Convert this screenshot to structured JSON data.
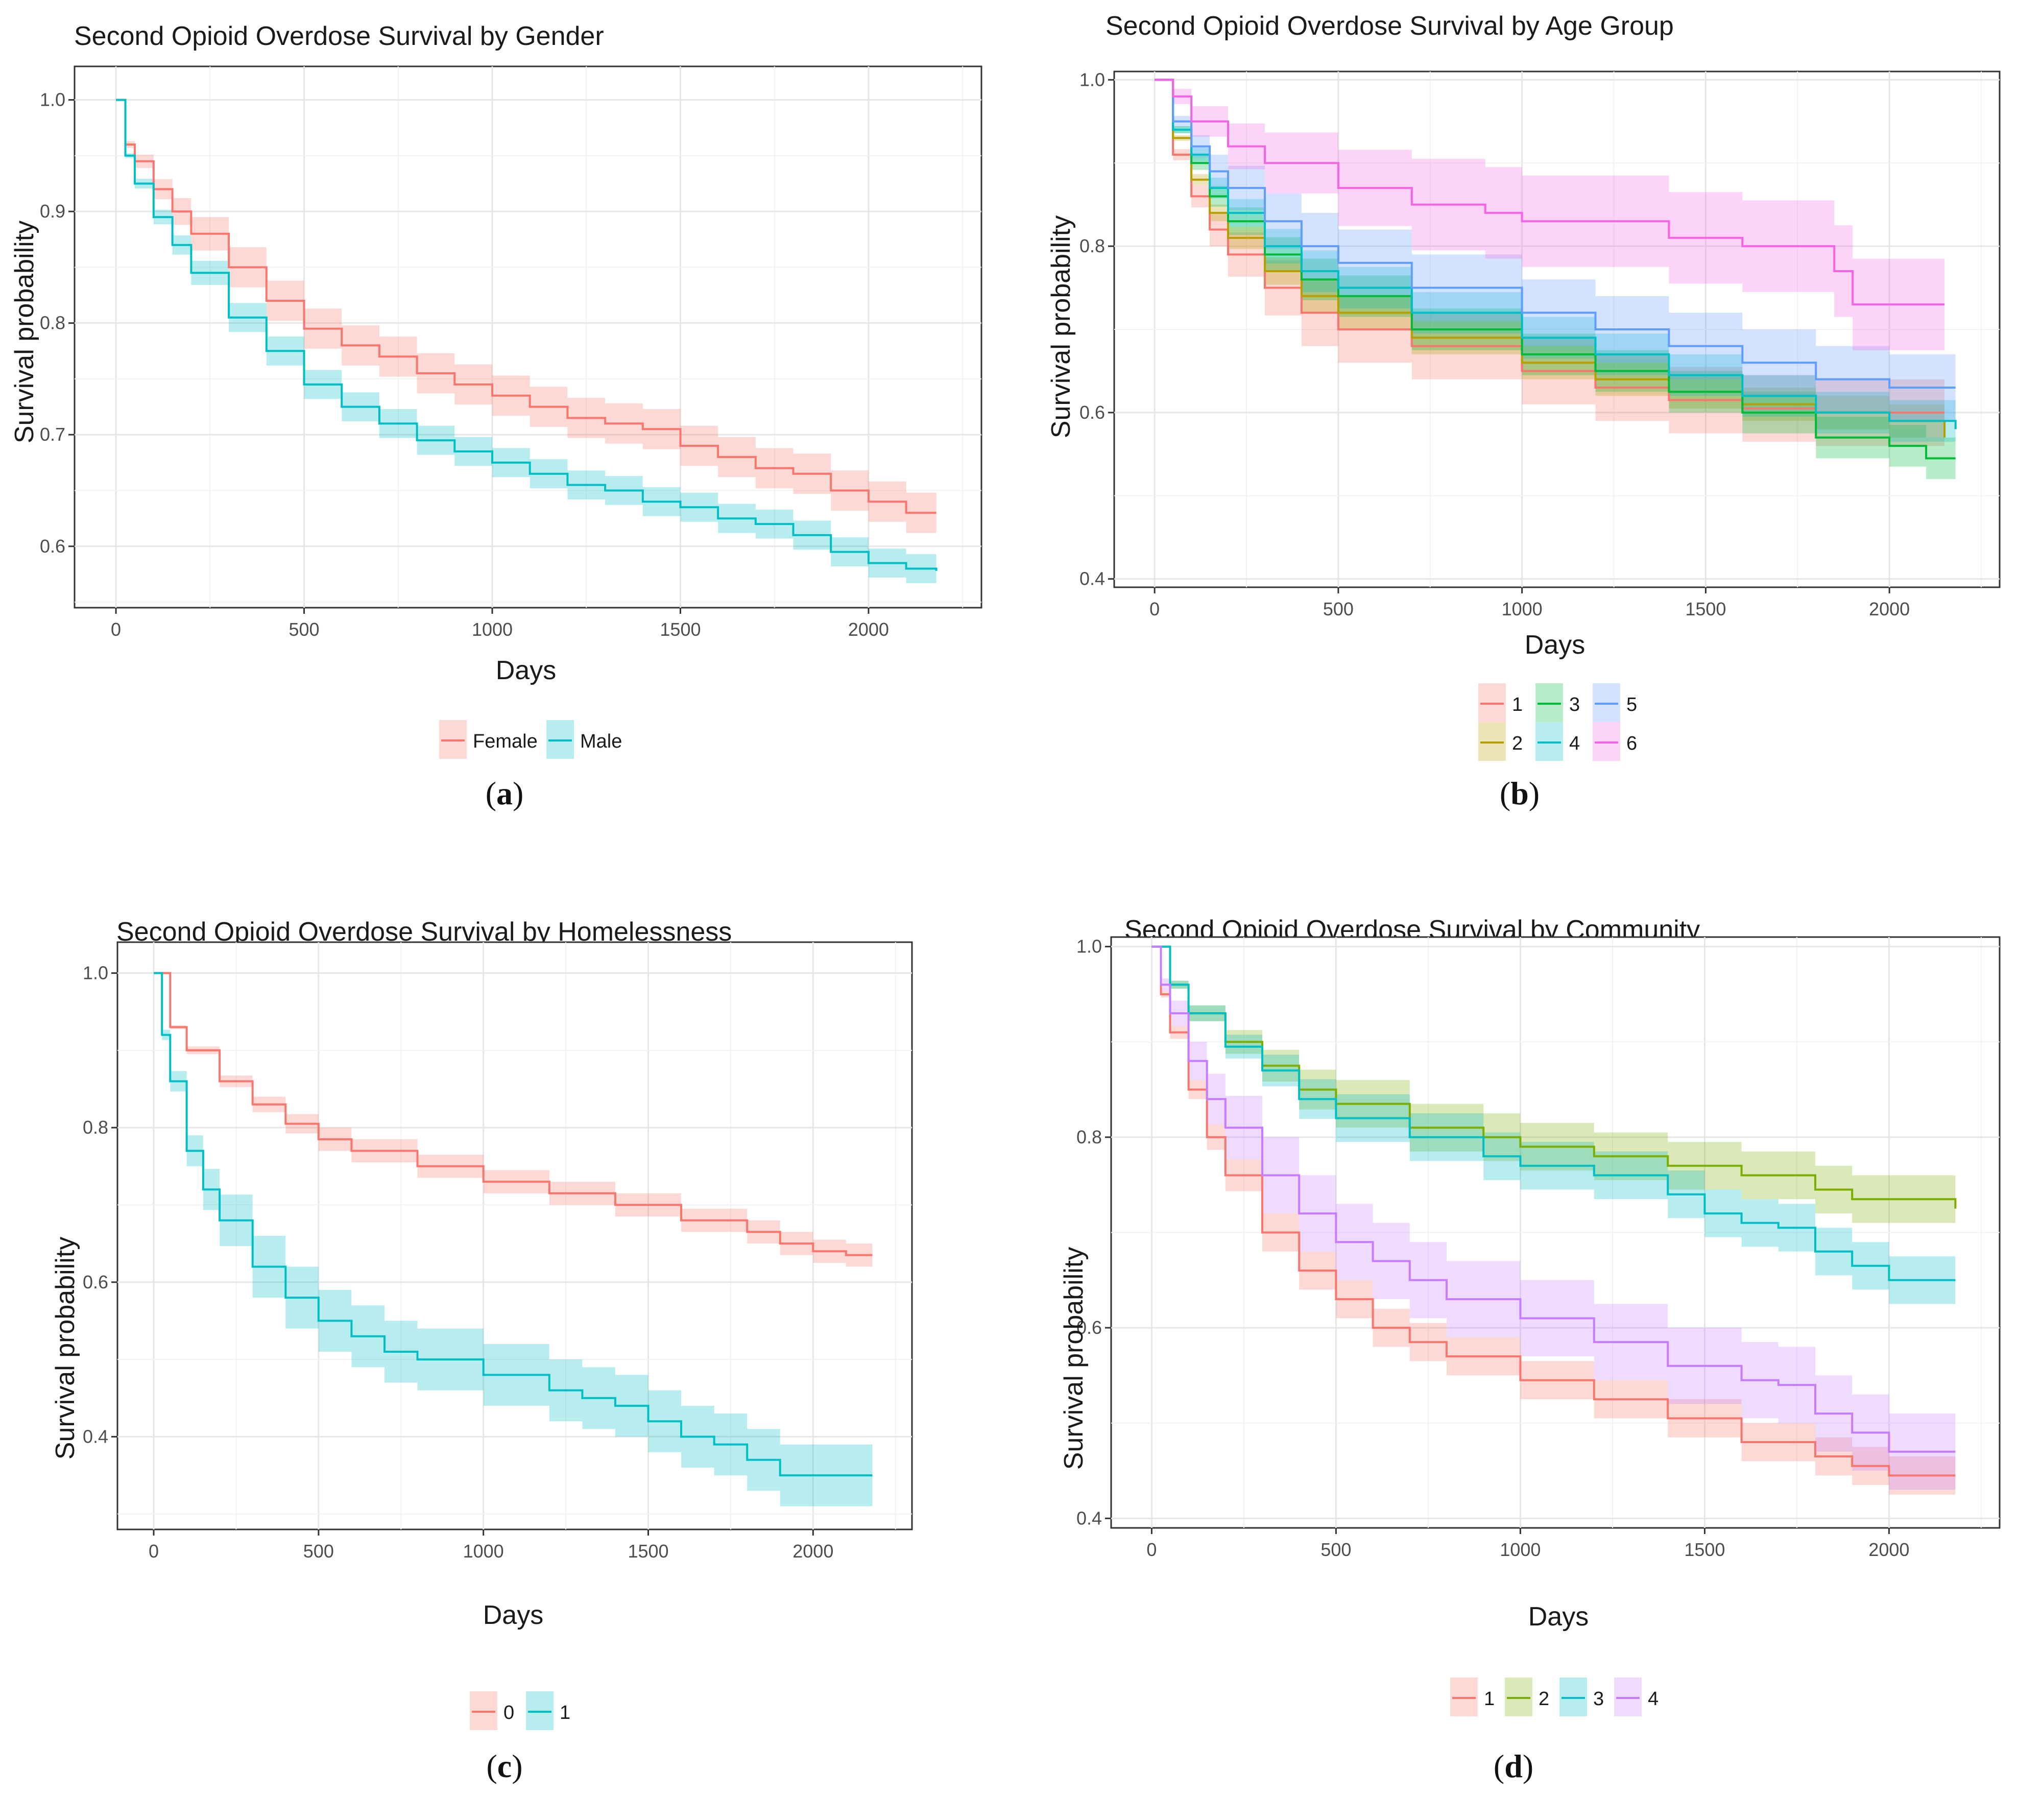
{
  "chart_data": [
    {
      "type": "line",
      "subtype": "kaplan-meier survival curves with confidence bands",
      "title": "Second Opioid Overdose Survival by Gender",
      "xlabel": "Days",
      "ylabel": "Survival probability",
      "xlim": [
        -110,
        2300
      ],
      "ylim": [
        0.545,
        1.03
      ],
      "xticks": [
        0,
        500,
        1000,
        1500,
        2000
      ],
      "xtick_labels": [
        "0",
        "500",
        "1000",
        "1500",
        "2000"
      ],
      "yticks": [
        0.6,
        0.7,
        0.8,
        0.9,
        1.0
      ],
      "ytick_labels": [
        "0.6",
        "0.7",
        "0.8",
        "0.9",
        "1.0"
      ],
      "legend_position": "bottom",
      "caption": "a",
      "series": [
        {
          "name": "Female",
          "color": "#F8766D",
          "x": [
            0,
            25,
            50,
            100,
            150,
            200,
            300,
            400,
            500,
            600,
            700,
            800,
            900,
            1000,
            1100,
            1200,
            1300,
            1400,
            1500,
            1600,
            1700,
            1800,
            1900,
            2000,
            2100,
            2180
          ],
          "y": [
            1.0,
            0.96,
            0.945,
            0.92,
            0.9,
            0.88,
            0.85,
            0.82,
            0.795,
            0.78,
            0.77,
            0.755,
            0.745,
            0.735,
            0.725,
            0.715,
            0.71,
            0.705,
            0.69,
            0.68,
            0.67,
            0.665,
            0.65,
            0.64,
            0.63,
            0.63
          ],
          "band": 0.018
        },
        {
          "name": "Male",
          "color": "#00BFC4",
          "x": [
            0,
            25,
            50,
            100,
            150,
            200,
            300,
            400,
            500,
            600,
            700,
            800,
            900,
            1000,
            1100,
            1200,
            1300,
            1400,
            1500,
            1600,
            1700,
            1800,
            1900,
            2000,
            2100,
            2180
          ],
          "y": [
            1.0,
            0.95,
            0.925,
            0.895,
            0.87,
            0.845,
            0.805,
            0.775,
            0.745,
            0.725,
            0.71,
            0.695,
            0.685,
            0.675,
            0.665,
            0.655,
            0.65,
            0.64,
            0.635,
            0.625,
            0.62,
            0.61,
            0.595,
            0.585,
            0.58,
            0.578
          ],
          "band": 0.013
        }
      ]
    },
    {
      "type": "line",
      "subtype": "kaplan-meier survival curves with confidence bands",
      "title": "Second Opioid Overdose Survival by Age Group",
      "xlabel": "Days",
      "ylabel": "Survival probability",
      "xlim": [
        -110,
        2300
      ],
      "ylim": [
        0.39,
        1.01
      ],
      "xticks": [
        0,
        500,
        1000,
        1500,
        2000
      ],
      "xtick_labels": [
        "0",
        "500",
        "1000",
        "1500",
        "2000"
      ],
      "yticks": [
        0.4,
        0.6,
        0.8,
        1.0
      ],
      "ytick_labels": [
        "0.4",
        "0.6",
        "0.8",
        "1.0"
      ],
      "legend_position": "bottom",
      "caption": "b",
      "series": [
        {
          "name": "1",
          "color": "#F8766D",
          "x": [
            0,
            50,
            100,
            150,
            200,
            300,
            400,
            500,
            700,
            1000,
            1200,
            1400,
            1600,
            1800,
            1950,
            2000,
            2150
          ],
          "y": [
            1.0,
            0.91,
            0.86,
            0.82,
            0.79,
            0.75,
            0.72,
            0.7,
            0.68,
            0.65,
            0.63,
            0.615,
            0.605,
            0.6,
            0.6,
            0.6,
            0.6
          ],
          "band": 0.04
        },
        {
          "name": "2",
          "color": "#B79F00",
          "x": [
            0,
            50,
            100,
            150,
            200,
            300,
            400,
            500,
            700,
            1000,
            1200,
            1400,
            1600,
            1800,
            2000,
            2150
          ],
          "y": [
            1.0,
            0.93,
            0.88,
            0.84,
            0.81,
            0.77,
            0.74,
            0.72,
            0.69,
            0.66,
            0.64,
            0.625,
            0.61,
            0.6,
            0.59,
            0.57
          ],
          "band": 0.02
        },
        {
          "name": "3",
          "color": "#00BA38",
          "x": [
            0,
            50,
            100,
            150,
            200,
            300,
            400,
            500,
            700,
            1000,
            1200,
            1400,
            1600,
            1800,
            2000,
            2100,
            2180
          ],
          "y": [
            1.0,
            0.94,
            0.9,
            0.86,
            0.83,
            0.79,
            0.76,
            0.74,
            0.7,
            0.67,
            0.65,
            0.625,
            0.6,
            0.57,
            0.56,
            0.545,
            0.545
          ],
          "band": 0.025
        },
        {
          "name": "4",
          "color": "#00BFC4",
          "x": [
            0,
            50,
            100,
            150,
            200,
            300,
            400,
            500,
            700,
            1000,
            1200,
            1400,
            1600,
            1800,
            2000,
            2180
          ],
          "y": [
            1.0,
            0.94,
            0.91,
            0.87,
            0.84,
            0.8,
            0.77,
            0.75,
            0.72,
            0.69,
            0.67,
            0.645,
            0.62,
            0.6,
            0.59,
            0.58
          ],
          "band": 0.025
        },
        {
          "name": "5",
          "color": "#619CFF",
          "x": [
            0,
            50,
            100,
            150,
            200,
            300,
            400,
            500,
            700,
            1000,
            1200,
            1400,
            1600,
            1800,
            2000,
            2180
          ],
          "y": [
            1.0,
            0.95,
            0.92,
            0.89,
            0.87,
            0.83,
            0.8,
            0.78,
            0.75,
            0.72,
            0.7,
            0.68,
            0.66,
            0.64,
            0.63,
            0.63
          ],
          "band": 0.04
        },
        {
          "name": "6",
          "color": "#F564E3",
          "x": [
            0,
            50,
            100,
            200,
            300,
            500,
            700,
            900,
            1000,
            1200,
            1400,
            1600,
            1700,
            1800,
            1850,
            1900,
            2150
          ],
          "y": [
            1.0,
            0.98,
            0.95,
            0.92,
            0.9,
            0.87,
            0.85,
            0.84,
            0.83,
            0.83,
            0.81,
            0.8,
            0.8,
            0.8,
            0.77,
            0.73,
            0.73
          ],
          "band": 0.055
        }
      ]
    },
    {
      "type": "line",
      "subtype": "kaplan-meier survival curves with confidence bands",
      "title": "Second Opioid Overdose Survival by Homelessness",
      "xlabel": "Days",
      "ylabel": "Survival probability",
      "xlim": [
        -110,
        2300
      ],
      "ylim": [
        0.28,
        1.04
      ],
      "xticks": [
        0,
        500,
        1000,
        1500,
        2000
      ],
      "xtick_labels": [
        "0",
        "500",
        "1000",
        "1500",
        "2000"
      ],
      "yticks": [
        0.4,
        0.6,
        0.8,
        1.0
      ],
      "ytick_labels": [
        "0.4",
        "0.6",
        "0.8",
        "1.0"
      ],
      "legend_position": "bottom",
      "caption": "c",
      "series": [
        {
          "name": "0",
          "color": "#F8766D",
          "x": [
            0,
            50,
            100,
            200,
            300,
            400,
            500,
            600,
            800,
            1000,
            1200,
            1400,
            1600,
            1800,
            1900,
            2000,
            2100,
            2180
          ],
          "y": [
            1.0,
            0.93,
            0.9,
            0.86,
            0.83,
            0.805,
            0.785,
            0.77,
            0.75,
            0.73,
            0.715,
            0.7,
            0.68,
            0.665,
            0.65,
            0.64,
            0.635,
            0.635
          ],
          "band": 0.015
        },
        {
          "name": "1",
          "color": "#00BFC4",
          "x": [
            0,
            25,
            50,
            100,
            150,
            200,
            300,
            400,
            500,
            600,
            700,
            800,
            1000,
            1200,
            1300,
            1400,
            1500,
            1600,
            1700,
            1800,
            1900,
            2000,
            2180
          ],
          "y": [
            1.0,
            0.92,
            0.86,
            0.77,
            0.72,
            0.68,
            0.62,
            0.58,
            0.55,
            0.53,
            0.51,
            0.5,
            0.48,
            0.46,
            0.45,
            0.44,
            0.42,
            0.4,
            0.39,
            0.37,
            0.35,
            0.35,
            0.35
          ],
          "band": 0.04
        }
      ]
    },
    {
      "type": "line",
      "subtype": "kaplan-meier survival curves with confidence bands",
      "title": "Second Opioid Overdose Survival by Community",
      "xlabel": "Days",
      "ylabel": "Survival probability",
      "xlim": [
        -110,
        2300
      ],
      "ylim": [
        0.39,
        1.01
      ],
      "xticks": [
        0,
        500,
        1000,
        1500,
        2000
      ],
      "xtick_labels": [
        "0",
        "500",
        "1000",
        "1500",
        "2000"
      ],
      "yticks": [
        0.4,
        0.6,
        0.8,
        1.0
      ],
      "ytick_labels": [
        "0.4",
        "0.6",
        "0.8",
        "1.0"
      ],
      "legend_position": "bottom",
      "caption": "d",
      "series": [
        {
          "name": "1",
          "color": "#F8766D",
          "x": [
            0,
            25,
            50,
            100,
            150,
            200,
            300,
            400,
            500,
            600,
            700,
            800,
            1000,
            1200,
            1400,
            1600,
            1800,
            1900,
            2000,
            2180
          ],
          "y": [
            1.0,
            0.95,
            0.91,
            0.85,
            0.8,
            0.76,
            0.7,
            0.66,
            0.63,
            0.6,
            0.585,
            0.57,
            0.545,
            0.525,
            0.505,
            0.48,
            0.465,
            0.455,
            0.445,
            0.445
          ],
          "band": 0.02
        },
        {
          "name": "2",
          "color": "#7CAE00",
          "x": [
            0,
            50,
            100,
            200,
            300,
            400,
            500,
            700,
            900,
            1000,
            1200,
            1400,
            1600,
            1800,
            1900,
            2000,
            2180
          ],
          "y": [
            1.0,
            0.96,
            0.93,
            0.9,
            0.875,
            0.85,
            0.835,
            0.81,
            0.8,
            0.79,
            0.78,
            0.77,
            0.76,
            0.745,
            0.735,
            0.735,
            0.725
          ],
          "band": 0.025
        },
        {
          "name": "3",
          "color": "#00BFC4",
          "x": [
            0,
            50,
            100,
            200,
            300,
            400,
            500,
            700,
            900,
            1000,
            1200,
            1400,
            1500,
            1600,
            1700,
            1800,
            1900,
            2000,
            2180
          ],
          "y": [
            1.0,
            0.96,
            0.93,
            0.895,
            0.87,
            0.84,
            0.82,
            0.8,
            0.78,
            0.77,
            0.76,
            0.74,
            0.72,
            0.71,
            0.705,
            0.68,
            0.665,
            0.65,
            0.65
          ],
          "band": 0.025
        },
        {
          "name": "4",
          "color": "#C77CFF",
          "x": [
            0,
            25,
            50,
            100,
            150,
            200,
            300,
            400,
            500,
            600,
            700,
            800,
            1000,
            1200,
            1400,
            1600,
            1700,
            1800,
            1900,
            2000,
            2180
          ],
          "y": [
            1.0,
            0.96,
            0.93,
            0.88,
            0.84,
            0.81,
            0.76,
            0.72,
            0.69,
            0.67,
            0.65,
            0.63,
            0.61,
            0.585,
            0.56,
            0.545,
            0.54,
            0.51,
            0.49,
            0.47,
            0.47
          ],
          "band": 0.04
        }
      ]
    }
  ]
}
